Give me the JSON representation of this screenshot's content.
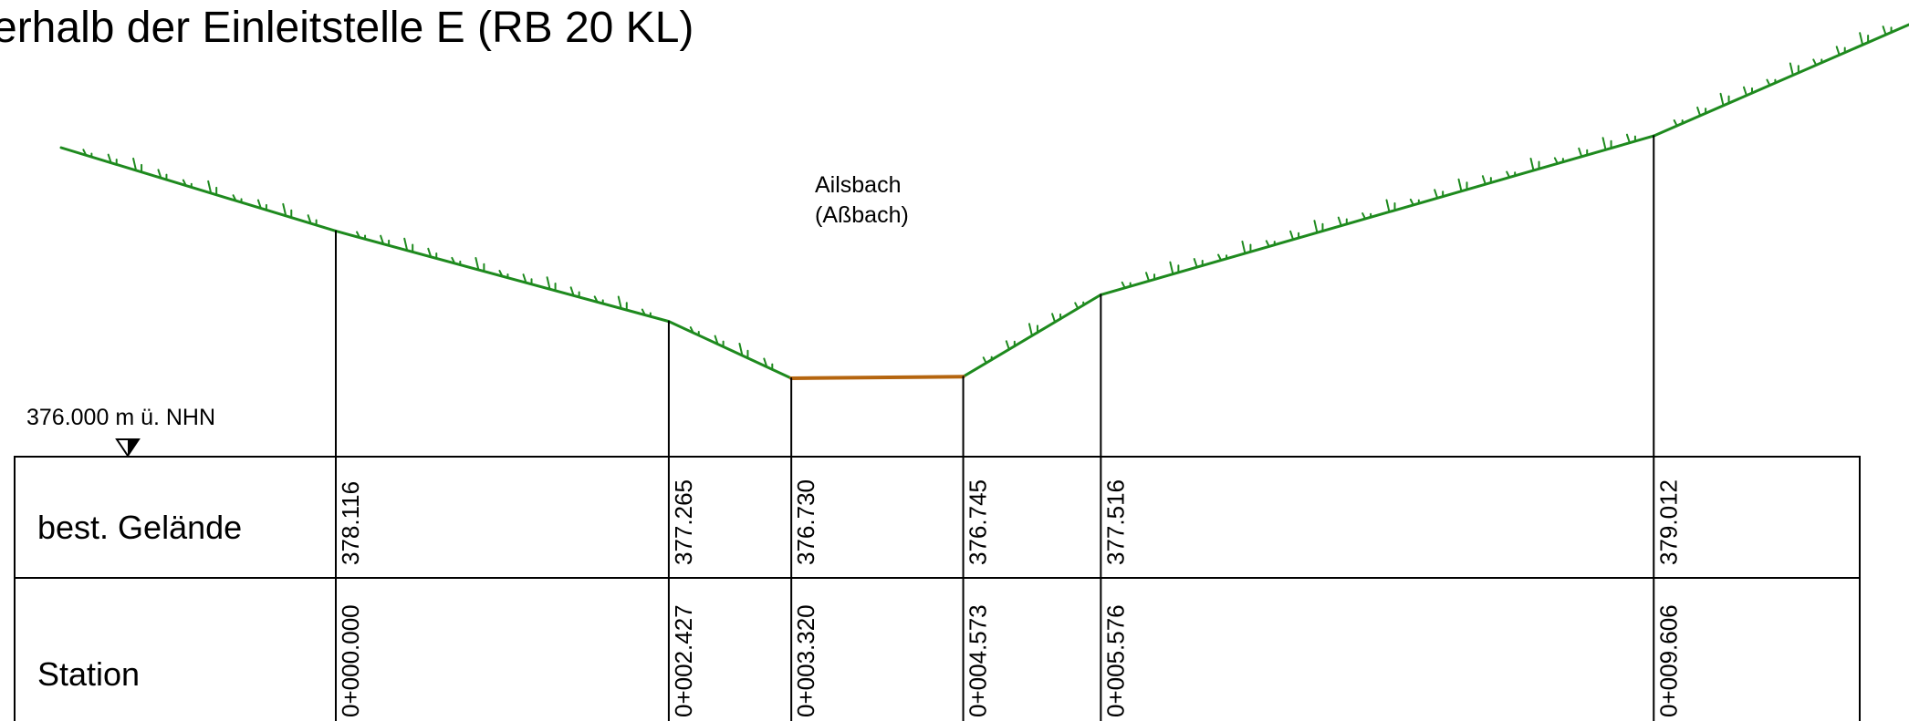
{
  "title": "erhalb der Einleitstelle E (RB 20 KL)",
  "water_label": [
    "Ailsbach",
    "(Aßbach)"
  ],
  "reference_level": "376.000 m ü. NHN",
  "rows": {
    "terrain_label": "best. Gelände",
    "station_label": "Station"
  },
  "colors": {
    "terrain": "#1e8a1e",
    "water": "#b5650f",
    "lines": "#000000"
  },
  "chart_data": {
    "type": "line",
    "x_unit": "station",
    "y_unit": "m ü. NHN",
    "reference_level": 376.0,
    "points": [
      {
        "station": "0+000.000",
        "elevation": "378.116"
      },
      {
        "station": "0+002.427",
        "elevation": "377.265"
      },
      {
        "station": "0+003.320",
        "elevation": "376.730"
      },
      {
        "station": "0+004.573",
        "elevation": "376.745"
      },
      {
        "station": "0+005.576",
        "elevation": "377.516"
      },
      {
        "station": "0+009.606",
        "elevation": "379.012"
      }
    ]
  }
}
